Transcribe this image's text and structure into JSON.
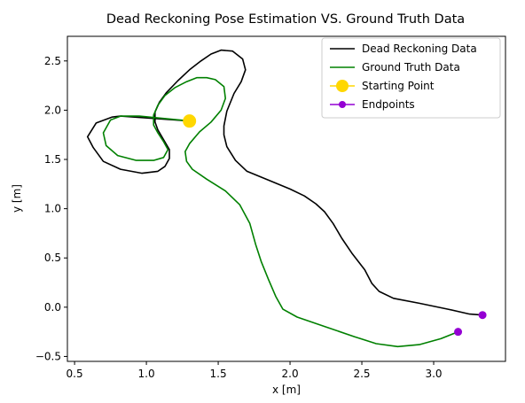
{
  "chart_data": {
    "type": "line",
    "title": "Dead Reckoning Pose Estimation VS. Ground Truth Data",
    "xlabel": "x [m]",
    "ylabel": "y [m]",
    "xlim": [
      0.45,
      3.5
    ],
    "ylim": [
      -0.55,
      2.75
    ],
    "xticks": [
      "0.5",
      "1.0",
      "1.5",
      "2.0",
      "2.5",
      "3.0"
    ],
    "yticks": [
      "−0.5",
      "0.0",
      "0.5",
      "1.0",
      "1.5",
      "2.0",
      "2.5"
    ],
    "grid": false,
    "legend_position": "top-right",
    "series": [
      {
        "name": "Dead Reckoning Data",
        "color": "#000000",
        "style": "line",
        "x": [
          1.3,
          0.82,
          0.76,
          0.65,
          0.59,
          0.63,
          0.7,
          0.82,
          0.97,
          1.08,
          1.13,
          1.16,
          1.16,
          1.12,
          1.08,
          1.06,
          1.06,
          1.09,
          1.14,
          1.22,
          1.3,
          1.38,
          1.45,
          1.52,
          1.6,
          1.67,
          1.69,
          1.66,
          1.61,
          1.56,
          1.54,
          1.54,
          1.56,
          1.62,
          1.7,
          1.85,
          2.0,
          2.1,
          2.18,
          2.24,
          2.3,
          2.36,
          2.43,
          2.52,
          2.57,
          2.62,
          2.72,
          2.9,
          3.1,
          3.25,
          3.34
        ],
        "y": [
          1.89,
          1.94,
          1.93,
          1.87,
          1.73,
          1.62,
          1.48,
          1.4,
          1.36,
          1.38,
          1.43,
          1.51,
          1.6,
          1.7,
          1.8,
          1.88,
          1.98,
          2.08,
          2.18,
          2.3,
          2.41,
          2.5,
          2.57,
          2.61,
          2.6,
          2.52,
          2.41,
          2.29,
          2.17,
          1.99,
          1.84,
          1.75,
          1.63,
          1.49,
          1.38,
          1.29,
          1.2,
          1.13,
          1.05,
          0.97,
          0.85,
          0.7,
          0.55,
          0.38,
          0.24,
          0.16,
          0.09,
          0.04,
          -0.02,
          -0.07,
          -0.08
        ]
      },
      {
        "name": "Ground Truth Data",
        "color": "#008000",
        "style": "line",
        "x": [
          1.3,
          0.95,
          0.82,
          0.75,
          0.7,
          0.72,
          0.8,
          0.93,
          1.05,
          1.12,
          1.15,
          1.12,
          1.08,
          1.05,
          1.05,
          1.08,
          1.13,
          1.2,
          1.28,
          1.35,
          1.42,
          1.48,
          1.54,
          1.55,
          1.52,
          1.45,
          1.37,
          1.3,
          1.27,
          1.28,
          1.32,
          1.42,
          1.55,
          1.65,
          1.72,
          1.76,
          1.8,
          1.85,
          1.9,
          1.95,
          2.05,
          2.25,
          2.45,
          2.6,
          2.75,
          2.9,
          3.05,
          3.17
        ],
        "y": [
          1.89,
          1.94,
          1.94,
          1.9,
          1.77,
          1.64,
          1.54,
          1.49,
          1.49,
          1.52,
          1.6,
          1.68,
          1.77,
          1.85,
          1.95,
          2.05,
          2.15,
          2.23,
          2.29,
          2.33,
          2.33,
          2.31,
          2.24,
          2.12,
          2.0,
          1.88,
          1.78,
          1.66,
          1.58,
          1.48,
          1.4,
          1.3,
          1.18,
          1.04,
          0.85,
          0.64,
          0.46,
          0.28,
          0.11,
          -0.02,
          -0.1,
          -0.2,
          -0.3,
          -0.37,
          -0.4,
          -0.38,
          -0.32,
          -0.25
        ]
      },
      {
        "name": "Starting Point",
        "color": "#ffd700",
        "style": "marker-large",
        "x": [
          1.3
        ],
        "y": [
          1.89
        ]
      },
      {
        "name": "Endpoints",
        "color": "#9400d3",
        "style": "marker-small",
        "x": [
          3.17,
          3.34
        ],
        "y": [
          -0.25,
          -0.08
        ]
      }
    ]
  }
}
